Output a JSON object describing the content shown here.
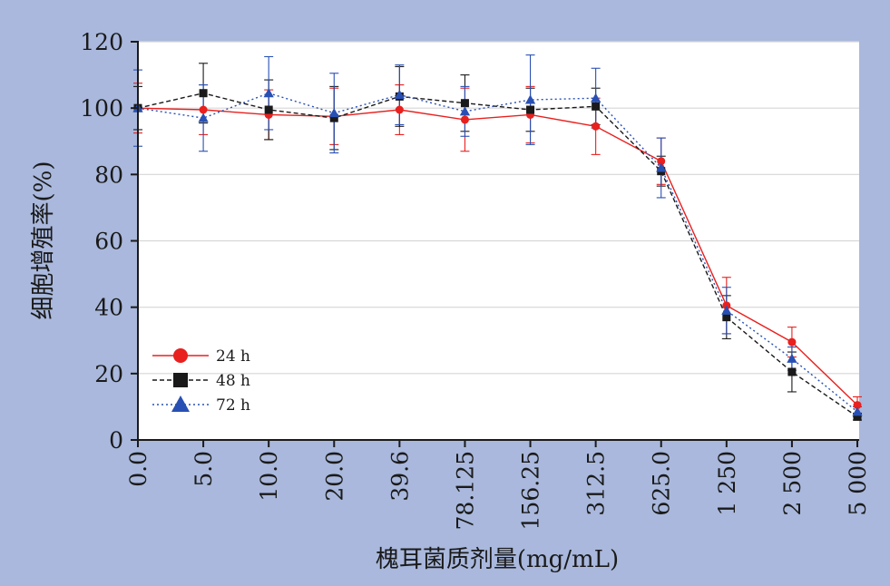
{
  "chart_data": {
    "type": "line",
    "xlabel": "槐耳菌质剂量(mg/mL)",
    "ylabel": "细胞增殖率(%)",
    "ylim": [
      0,
      120
    ],
    "yticks": [
      0,
      20,
      40,
      60,
      80,
      100,
      120
    ],
    "categories": [
      "0.0",
      "5.0",
      "10.0",
      "20.0",
      "39.6",
      "78.125",
      "156.25",
      "312.5",
      "625.0",
      "1 250",
      "2 500",
      "5 000"
    ],
    "grid": "horizontal",
    "legend_position": "bottom-left",
    "series": [
      {
        "name": "24 h",
        "color": "#e8201e",
        "marker": "circle",
        "line_style": "solid",
        "values": [
          100,
          99.5,
          98,
          97.5,
          99.5,
          96.5,
          98,
          94.5,
          84,
          40.5,
          29.5,
          10.5
        ],
        "errors": [
          7.5,
          7.5,
          7.5,
          8.5,
          7.5,
          9.5,
          8.5,
          8.5,
          7,
          8.5,
          4.5,
          2.5
        ]
      },
      {
        "name": "48 h",
        "color": "#1a1a1a",
        "marker": "square",
        "line_style": "dashed",
        "values": [
          100,
          104.5,
          99.5,
          97,
          103.5,
          101.5,
          99.5,
          100.5,
          81,
          37,
          20.5,
          7
        ],
        "errors": [
          6.5,
          9,
          9,
          9.5,
          9,
          8.5,
          6.5,
          5.5,
          4.5,
          6.5,
          6,
          1
        ]
      },
      {
        "name": "72 h",
        "color": "#2850b4",
        "marker": "triangle",
        "line_style": "dotted",
        "values": [
          100,
          97,
          104.5,
          98.5,
          104,
          99,
          102.5,
          103,
          82,
          39,
          24.5,
          8.5
        ],
        "errors": [
          11.5,
          10,
          11,
          12,
          9,
          7.5,
          13.5,
          9,
          9,
          7,
          3.5,
          1.5
        ]
      }
    ]
  }
}
